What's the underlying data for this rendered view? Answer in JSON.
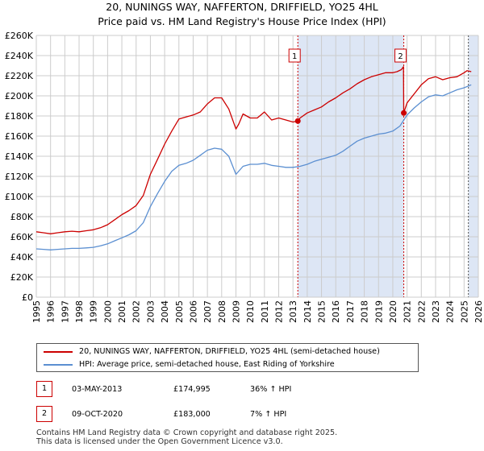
{
  "title_line1": "20, NUNINGS WAY, NAFFERTON, DRIFFIELD, YO25 4HL",
  "title_line2": "Price paid vs. HM Land Registry's House Price Index (HPI)",
  "colors": {
    "property": "#cc0000",
    "hpi": "#5b8fd1",
    "shade": "#dde6f5",
    "grid": "#cccccc",
    "marker_border": "#cc0000"
  },
  "legend": {
    "property_label": "20, NUNINGS WAY, NAFFERTON, DRIFFIELD, YO25 4HL (semi-detached house)",
    "hpi_label": "HPI: Average price, semi-detached house, East Riding of Yorkshire"
  },
  "transactions": [
    {
      "id": "1",
      "date": "03-MAY-2013",
      "price": "£174,995",
      "hpi": "36% ↑ HPI"
    },
    {
      "id": "2",
      "date": "09-OCT-2020",
      "price": "£183,000",
      "hpi": "7% ↑ HPI"
    }
  ],
  "footer": {
    "line1": "Contains HM Land Registry data © Crown copyright and database right 2025.",
    "line2": "This data is licensed under the Open Government Licence v3.0."
  },
  "chart_data": {
    "type": "line",
    "title": "Price paid vs. HM Land Registry's House Price Index (HPI)",
    "xlim": [
      1995,
      2026
    ],
    "ylim": [
      0,
      260000
    ],
    "x_ticks": [
      1995,
      1996,
      1997,
      1998,
      1999,
      2000,
      2001,
      2002,
      2003,
      2004,
      2005,
      2006,
      2007,
      2008,
      2009,
      2010,
      2011,
      2012,
      2013,
      2014,
      2015,
      2016,
      2017,
      2018,
      2019,
      2020,
      2021,
      2022,
      2023,
      2024,
      2025,
      2026
    ],
    "y_ticks": [
      0,
      20000,
      40000,
      60000,
      80000,
      100000,
      120000,
      140000,
      160000,
      180000,
      200000,
      220000,
      240000,
      260000
    ],
    "y_tick_labels": [
      "£0",
      "£20K",
      "£40K",
      "£60K",
      "£80K",
      "£100K",
      "£120K",
      "£140K",
      "£160K",
      "£180K",
      "£200K",
      "£220K",
      "£240K",
      "£260K"
    ],
    "shaded_ranges": [
      [
        2013.34,
        2020.77
      ],
      [
        2025.3,
        2026
      ]
    ],
    "markers": [
      {
        "label": "1",
        "x": 2013.34,
        "y": 174995
      },
      {
        "label": "2",
        "x": 2020.77,
        "y": 183000
      }
    ],
    "series": [
      {
        "name": "20, NUNINGS WAY, NAFFERTON, DRIFFIELD, YO25 4HL (semi-detached house)",
        "x": [
          1995,
          1995.5,
          1996,
          1996.5,
          1997,
          1997.5,
          1998,
          1998.5,
          1999,
          1999.5,
          2000,
          2000.5,
          2001,
          2001.5,
          2002,
          2002.5,
          2003,
          2003.5,
          2004,
          2004.5,
          2005,
          2005.5,
          2006,
          2006.5,
          2007,
          2007.5,
          2008,
          2008.5,
          2009,
          2009.2,
          2009.5,
          2010,
          2010.5,
          2011,
          2011.5,
          2012,
          2012.5,
          2013,
          2013.34,
          2013.5,
          2014,
          2014.5,
          2015,
          2015.5,
          2016,
          2016.5,
          2017,
          2017.5,
          2018,
          2018.5,
          2019,
          2019.5,
          2020,
          2020.3,
          2020.6,
          2020.75,
          2020.77,
          2021,
          2021.5,
          2022,
          2022.5,
          2023,
          2023.5,
          2024,
          2024.5,
          2025,
          2025.2,
          2025.5
        ],
        "y": [
          65000,
          64000,
          63000,
          64000,
          65000,
          65500,
          65000,
          66000,
          67000,
          69000,
          72000,
          77000,
          82000,
          86000,
          91000,
          101000,
          122000,
          137000,
          152000,
          165000,
          177000,
          179000,
          181000,
          184000,
          192000,
          198000,
          198000,
          187000,
          167000,
          172000,
          182000,
          178000,
          178000,
          184000,
          176000,
          178000,
          176000,
          174000,
          174995,
          178000,
          183000,
          186000,
          189000,
          194000,
          198000,
          203000,
          207000,
          212000,
          216000,
          219000,
          221000,
          223000,
          223000,
          224000,
          226000,
          229000,
          183000,
          193000,
          202000,
          211000,
          217000,
          219000,
          216000,
          218000,
          219000,
          223000,
          225000,
          224000
        ]
      },
      {
        "name": "HPI: Average price, semi-detached house, East Riding of Yorkshire",
        "x": [
          1995,
          1995.5,
          1996,
          1996.5,
          1997,
          1997.5,
          1998,
          1998.5,
          1999,
          1999.5,
          2000,
          2000.5,
          2001,
          2001.5,
          2002,
          2002.5,
          2003,
          2003.5,
          2004,
          2004.5,
          2005,
          2005.5,
          2006,
          2006.5,
          2007,
          2007.5,
          2008,
          2008.5,
          2009,
          2009.5,
          2010,
          2010.5,
          2011,
          2011.5,
          2012,
          2012.5,
          2013,
          2013.5,
          2014,
          2014.5,
          2015,
          2015.5,
          2016,
          2016.5,
          2017,
          2017.5,
          2018,
          2018.5,
          2019,
          2019.5,
          2020,
          2020.5,
          2021,
          2021.5,
          2022,
          2022.5,
          2023,
          2023.5,
          2024,
          2024.5,
          2025,
          2025.5
        ],
        "y": [
          48000,
          47500,
          47000,
          47500,
          48000,
          48500,
          48500,
          49000,
          49500,
          51000,
          53000,
          56000,
          59000,
          62000,
          66000,
          74000,
          90000,
          103000,
          115000,
          125000,
          131000,
          133000,
          136000,
          141000,
          146000,
          148000,
          147000,
          140000,
          122000,
          130000,
          132000,
          132000,
          133000,
          131000,
          130000,
          129000,
          129000,
          130000,
          132000,
          135000,
          137000,
          139000,
          141000,
          145000,
          150000,
          155000,
          158000,
          160000,
          162000,
          163000,
          165000,
          170000,
          181000,
          188000,
          194000,
          199000,
          201000,
          200000,
          203000,
          206000,
          208000,
          211000
        ]
      }
    ]
  }
}
